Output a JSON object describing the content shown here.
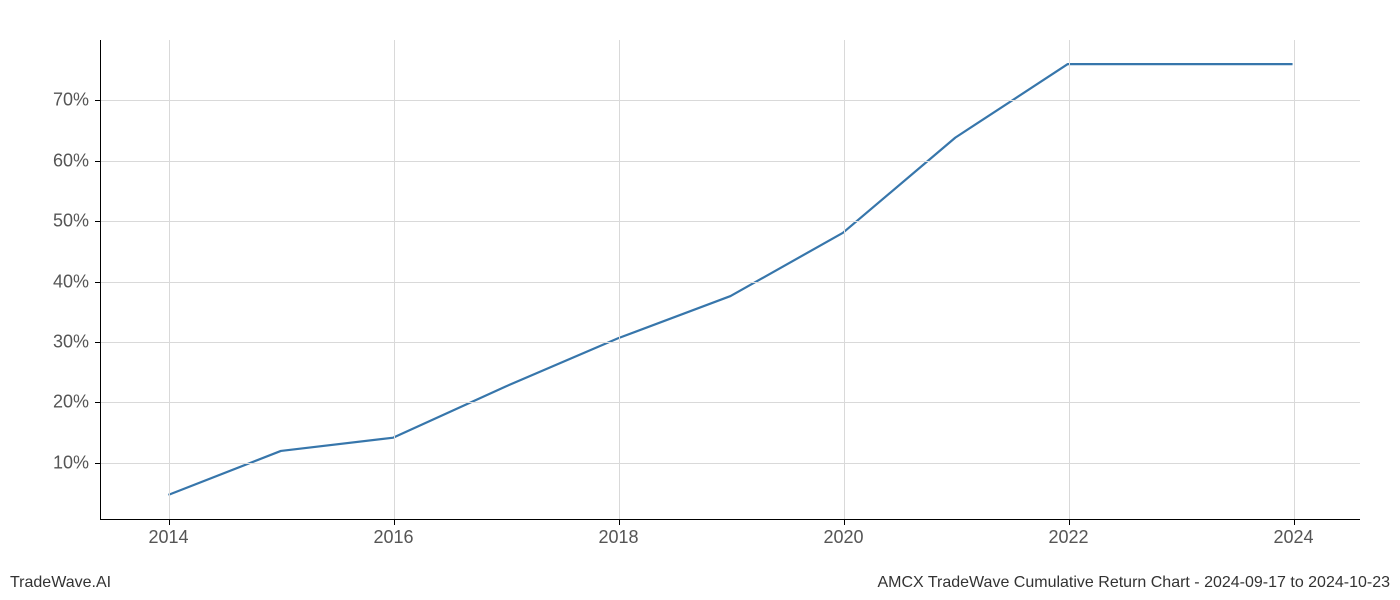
{
  "chart": {
    "type": "line",
    "footer_left": "TradeWave.AI",
    "footer_right": "AMCX TradeWave Cumulative Return Chart - 2024-09-17 to 2024-10-23",
    "background_color": "#ffffff",
    "grid_color": "#d9d9d9",
    "axis_color": "#000000",
    "tick_label_color": "#555555",
    "tick_fontsize": 18,
    "footer_fontsize": 16,
    "line_color": "#3776ab",
    "line_width": 2.2,
    "x_axis": {
      "min": 2013.4,
      "max": 2024.6,
      "ticks": [
        2014,
        2016,
        2018,
        2020,
        2022,
        2024
      ],
      "tick_labels": [
        "2014",
        "2016",
        "2018",
        "2020",
        "2022",
        "2024"
      ]
    },
    "y_axis": {
      "min": 0.5,
      "max": 80,
      "ticks": [
        10,
        20,
        30,
        40,
        50,
        60,
        70
      ],
      "tick_labels": [
        "10%",
        "20%",
        "30%",
        "40%",
        "50%",
        "60%",
        "70%"
      ]
    },
    "series": {
      "x": [
        2014,
        2015,
        2016,
        2017,
        2018,
        2019,
        2020,
        2021,
        2022,
        2023,
        2024
      ],
      "y": [
        4.5,
        11.8,
        14.0,
        22.5,
        30.5,
        37.5,
        48.0,
        63.8,
        76.0,
        76.0,
        76.0
      ]
    }
  }
}
